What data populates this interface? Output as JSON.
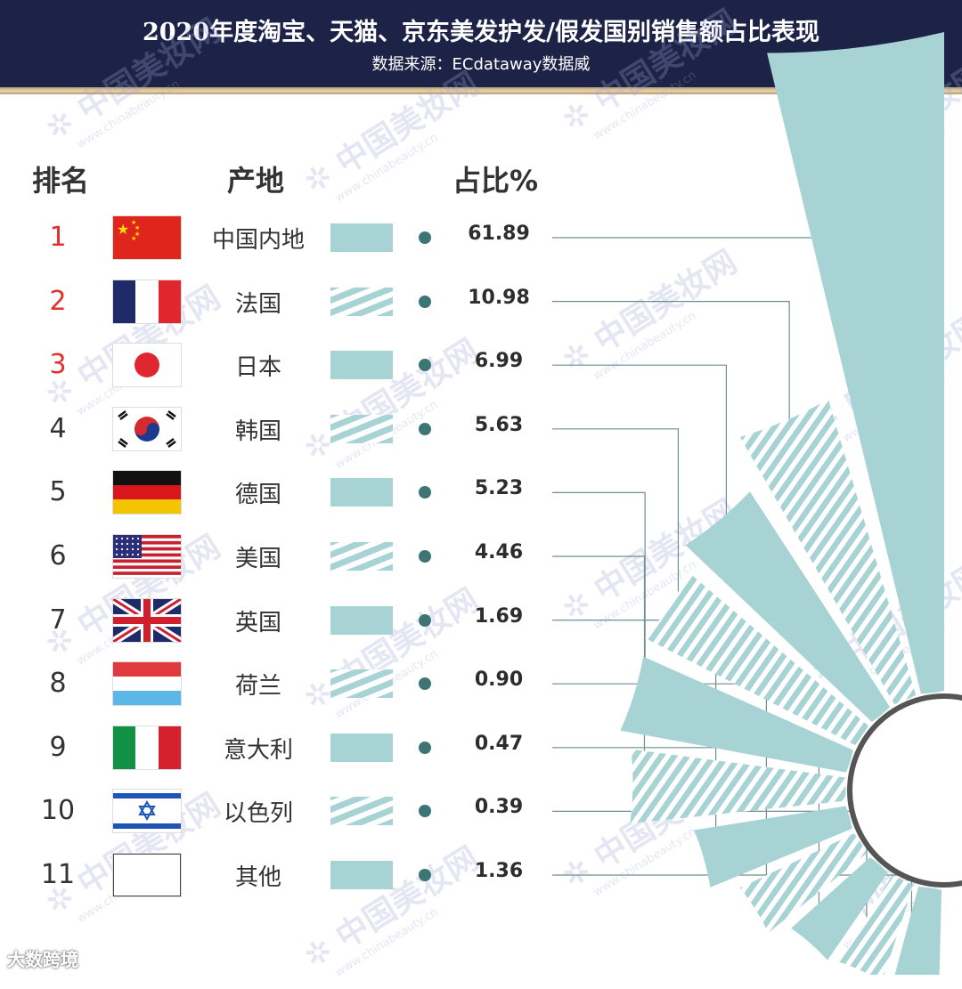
{
  "header": {
    "title": "2020年度淘宝、天猫、京东美发护发/假发国别销售额占比表现",
    "source": "数据来源：ECdataway数据威"
  },
  "columns": {
    "rank": "排名",
    "origin": "产地",
    "share": "占比%"
  },
  "watermark": {
    "main": "中国美妆网",
    "sub": "www.chinabeauty.cn"
  },
  "logo": "大数跨境",
  "chart_data": {
    "type": "bar",
    "subtype": "radial",
    "categories": [
      "中国内地",
      "法国",
      "日本",
      "韩国",
      "德国",
      "美国",
      "英国",
      "荷兰",
      "意大利",
      "以色列",
      "其他"
    ],
    "ranks": [
      "1",
      "2",
      "3",
      "4",
      "5",
      "6",
      "7",
      "8",
      "9",
      "10",
      "11"
    ],
    "values": [
      61.89,
      10.98,
      6.99,
      5.63,
      5.23,
      4.46,
      1.69,
      0.9,
      0.47,
      0.39,
      1.36
    ],
    "value_labels": [
      "61.89",
      "10.98",
      "6.99",
      "5.63",
      "5.23",
      "4.46",
      "1.69",
      "0.90",
      "0.47",
      "0.39",
      "1.36"
    ],
    "patterns": [
      "solid",
      "striped",
      "solid",
      "striped",
      "solid",
      "striped",
      "solid",
      "striped",
      "solid",
      "striped",
      "solid"
    ],
    "flags": [
      "china",
      "france",
      "japan",
      "korea",
      "germany",
      "usa",
      "uk",
      "netherlands",
      "italy",
      "israel",
      "blank"
    ],
    "colors": {
      "bar": "#a8d3d4",
      "dot": "#3d7474",
      "leader": "#6f8f8f",
      "ring": "#555555",
      "header": "#1d2346",
      "top_rank": "#e23030"
    }
  }
}
